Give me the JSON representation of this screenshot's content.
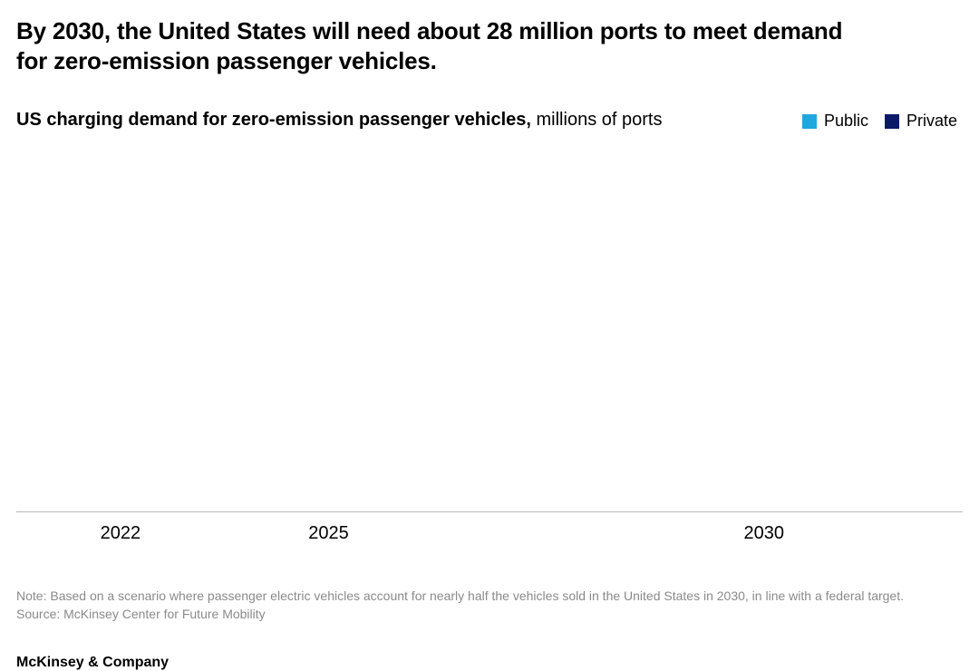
{
  "headline": "By 2030, the United States will need about 28 million ports to meet demand for zero-emission passenger vehicles.",
  "subhead": {
    "bold": "US charging demand for zero-emission passenger vehicles,",
    "light": " millions of ports"
  },
  "legend": {
    "public": {
      "label": "Public",
      "color": "#1fa8e0"
    },
    "private": {
      "label": "Private",
      "color": "#0a1a66"
    }
  },
  "chart": {
    "type": "stacked-bar",
    "background_color": "#ffffff",
    "axis_color": "#b9b9b9",
    "font_family": "Helvetica, Arial, sans-serif",
    "x_ticks": [
      {
        "label": "2022",
        "pos_pct": 11
      },
      {
        "label": "2025",
        "pos_pct": 33
      },
      {
        "label": "2030",
        "pos_pct": 79
      }
    ],
    "y_max": 28,
    "y_min": 0,
    "series": [
      "Public",
      "Private"
    ],
    "series_colors": {
      "Public": "#1fa8e0",
      "Private": "#0a1a66"
    },
    "data_note": "Bar values not rendered in this frame (animation start state)."
  },
  "footnote": {
    "note": "Note: Based on a scenario where passenger electric vehicles account for nearly half the vehicles sold in the United States in 2030, in line with a federal target.",
    "source": "Source: McKinsey Center for Future Mobility"
  },
  "brand": "McKinsey & Company",
  "text_colors": {
    "headline": "#000000",
    "subhead": "#000000",
    "axis_label": "#000000",
    "footnote": "#8a8a8a",
    "brand": "#000000"
  },
  "font_sizes_pt": {
    "headline": 20,
    "subhead": 15,
    "legend": 13,
    "axis": 15,
    "footnote": 10.5,
    "brand": 12
  }
}
